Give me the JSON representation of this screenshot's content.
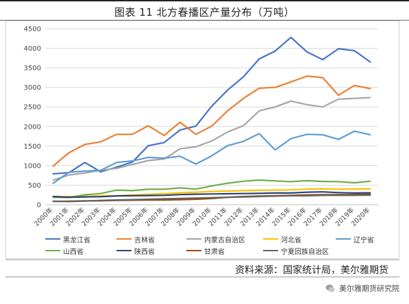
{
  "title": "图表 11 北方春播区产量分布（万吨）",
  "source_note": "资料来源：国家统计局，美尔雅期货",
  "watermark": "美尔雅期货研究院",
  "watermark_icon": "chat-bubble-icon",
  "chart_data": {
    "type": "line",
    "title": "图表 11 北方春播区产量分布（万吨）",
    "xlabel": "",
    "ylabel": "",
    "ylim": [
      0,
      4500
    ],
    "yticks": [
      0,
      500,
      1000,
      1500,
      2000,
      2500,
      3000,
      3500,
      4000,
      4500
    ],
    "grid": true,
    "legend_position": "bottom",
    "categories": [
      "2000年",
      "2001年",
      "2002年",
      "2003年",
      "2004年",
      "2005年",
      "2006年",
      "2007年",
      "2008年",
      "2009年",
      "2010年",
      "2011年",
      "2012年",
      "2013年",
      "2014年",
      "2015年",
      "2016年",
      "2017年",
      "2018年",
      "2019年",
      "2020年"
    ],
    "series": [
      {
        "name": "黑龙江省",
        "color": "#4472C4",
        "values": [
          790,
          820,
          1080,
          840,
          960,
          1090,
          1510,
          1590,
          1910,
          2010,
          2520,
          2930,
          3270,
          3730,
          3930,
          4280,
          3910,
          3710,
          3990,
          3940,
          3650
        ]
      },
      {
        "name": "吉林省",
        "color": "#ED7D31",
        "values": [
          990,
          1330,
          1540,
          1610,
          1800,
          1800,
          2020,
          1770,
          2110,
          1800,
          2010,
          2400,
          2720,
          2980,
          3000,
          3140,
          3290,
          3250,
          2800,
          3050,
          2970
        ]
      },
      {
        "name": "内蒙古自治区",
        "color": "#A5A5A5",
        "values": [
          630,
          760,
          810,
          880,
          930,
          1030,
          1130,
          1170,
          1430,
          1480,
          1630,
          1860,
          2020,
          2400,
          2500,
          2650,
          2560,
          2500,
          2700,
          2720,
          2740
        ]
      },
      {
        "name": "河北省",
        "color": "#FFC000",
        "values": [
          200,
          210,
          215,
          225,
          230,
          250,
          265,
          280,
          305,
          320,
          340,
          350,
          360,
          370,
          375,
          380,
          400,
          405,
          400,
          400,
          405
        ]
      },
      {
        "name": "辽宁省",
        "color": "#5B9BD5",
        "values": [
          550,
          830,
          860,
          880,
          1080,
          1120,
          1210,
          1190,
          1240,
          1040,
          1250,
          1510,
          1620,
          1820,
          1400,
          1690,
          1800,
          1790,
          1670,
          1880,
          1790
        ]
      },
      {
        "name": "山西省",
        "color": "#70AD47",
        "values": [
          190,
          185,
          255,
          285,
          375,
          360,
          395,
          395,
          430,
          400,
          480,
          550,
          600,
          630,
          610,
          590,
          615,
          595,
          590,
          560,
          600
        ]
      },
      {
        "name": "陕西省",
        "color": "#264478",
        "values": [
          210,
          190,
          200,
          205,
          225,
          230,
          235,
          240,
          260,
          270,
          275,
          280,
          285,
          290,
          300,
          300,
          320,
          330,
          310,
          300,
          305
        ]
      },
      {
        "name": "甘肃省",
        "color": "#9E480E",
        "values": [
          85,
          90,
          100,
          100,
          110,
          115,
          120,
          120,
          130,
          140,
          160,
          190,
          210,
          220,
          230,
          240,
          250,
          255,
          260,
          260,
          270
        ]
      },
      {
        "name": "宁夏回族自治区",
        "color": "#636363",
        "values": [
          90,
          80,
          95,
          110,
          120,
          130,
          140,
          150,
          160,
          170,
          180,
          190,
          200,
          210,
          220,
          230,
          230,
          240,
          240,
          240,
          245
        ]
      }
    ]
  }
}
